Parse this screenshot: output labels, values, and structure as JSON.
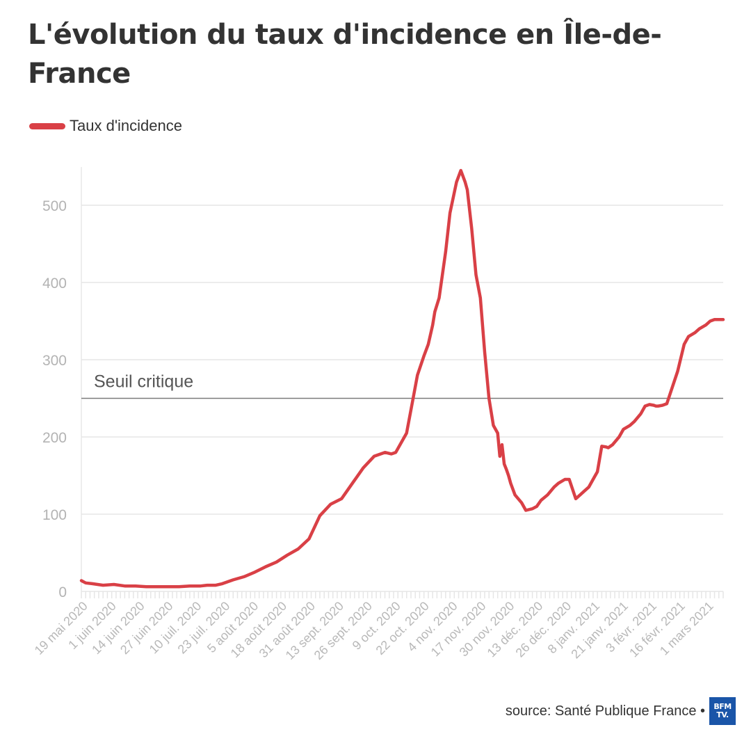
{
  "title": "L'évolution du taux d'incidence en Île-de-France",
  "legend": {
    "label": "Taux d'incidence",
    "color": "#d94046"
  },
  "footer": {
    "source": "source: Santé Publique France •",
    "logo_line1": "BFM",
    "logo_line2": "TV."
  },
  "chart_data": {
    "type": "line",
    "title": "L'évolution du taux d'incidence en Île-de-France",
    "xlabel": "",
    "ylabel": "",
    "ylim": [
      0,
      550
    ],
    "yticks": [
      0,
      100,
      200,
      300,
      400,
      500
    ],
    "xtick_labels": [
      "19 mai 2020",
      "1 juin 2020",
      "14 juin 2020",
      "27 juin 2020",
      "10 juil. 2020",
      "23 juil. 2020",
      "5 août 2020",
      "18 août 2020",
      "31 août 2020",
      "13 sept. 2020",
      "26 sept. 2020",
      "9 oct. 2020",
      "22 oct. 2020",
      "4 nov. 2020",
      "17 nov. 2020",
      "30 nov. 2020",
      "13 déc. 2020",
      "26 déc. 2020",
      "8 janv. 2021",
      "21 janv. 2021",
      "3 févr. 2021",
      "16 févr. 2021",
      "1 mars 2021"
    ],
    "reference_line": {
      "label": "Seuil critique",
      "value": 250
    },
    "series": [
      {
        "name": "Taux d'incidence",
        "color": "#d94046",
        "x": [
          0,
          2,
          5,
          10,
          15,
          20,
          25,
          30,
          35,
          40,
          45,
          50,
          55,
          58,
          62,
          65,
          70,
          75,
          80,
          85,
          90,
          95,
          100,
          105,
          110,
          115,
          120,
          125,
          130,
          135,
          140,
          143,
          145,
          150,
          153,
          155,
          158,
          160,
          162,
          163,
          165,
          168,
          170,
          173,
          175,
          177,
          178,
          180,
          182,
          184,
          186,
          188,
          190,
          192,
          193,
          194,
          195,
          196,
          197,
          198,
          200,
          203,
          205,
          208,
          210,
          212,
          215,
          218,
          220,
          223,
          225,
          228,
          230,
          232,
          234,
          236,
          238,
          240,
          242,
          243,
          245,
          248,
          250,
          253,
          255,
          258,
          260,
          262,
          264,
          265,
          266,
          268,
          270,
          272,
          275,
          278,
          280,
          283,
          285,
          288,
          290,
          292,
          294,
          295,
          296
        ],
        "values": [
          14,
          11,
          10,
          8,
          9,
          7,
          7,
          6,
          6,
          6,
          6,
          7,
          7,
          8,
          8,
          10,
          15,
          19,
          25,
          32,
          38,
          47,
          55,
          68,
          98,
          113,
          120,
          140,
          160,
          175,
          180,
          178,
          180,
          205,
          250,
          280,
          305,
          320,
          345,
          362,
          380,
          440,
          490,
          530,
          545,
          530,
          520,
          470,
          410,
          380,
          310,
          250,
          215,
          205,
          175,
          190,
          165,
          158,
          150,
          140,
          125,
          115,
          105,
          107,
          110,
          118,
          125,
          135,
          140,
          145,
          145,
          120,
          125,
          130,
          135,
          145,
          155,
          188,
          187,
          186,
          190,
          200,
          210,
          215,
          220,
          230,
          240,
          242,
          241,
          240,
          240,
          241,
          243,
          260,
          285,
          320,
          330,
          335,
          340,
          345,
          350,
          352,
          352,
          352,
          352
        ]
      }
    ]
  }
}
